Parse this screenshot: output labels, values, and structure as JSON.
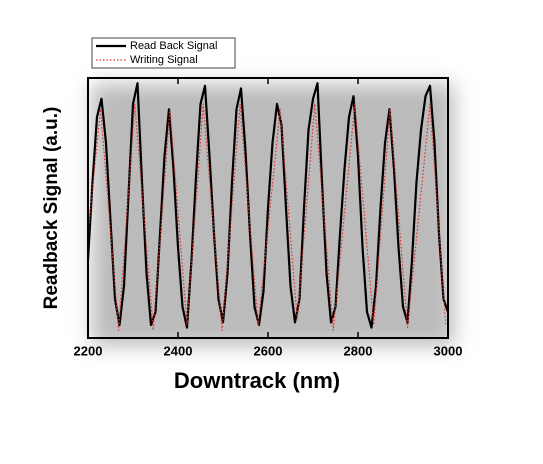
{
  "chart_data": {
    "type": "line",
    "x_label": "Downtrack (nm)",
    "y_label": "Readback Signal (a.u.)",
    "xlim": [
      2200,
      3000
    ],
    "xticks": [
      2200,
      2400,
      2600,
      2800,
      3000
    ],
    "ylim": [
      0,
      1
    ],
    "legend": "top-left",
    "series": [
      {
        "name": "Read Back Signal",
        "color": "#000000",
        "x": [
          2200,
          2210,
          2220,
          2230,
          2240,
          2250,
          2260,
          2270,
          2280,
          2290,
          2300,
          2310,
          2320,
          2330,
          2340,
          2350,
          2360,
          2370,
          2380,
          2390,
          2400,
          2410,
          2420,
          2430,
          2440,
          2450,
          2460,
          2470,
          2480,
          2490,
          2500,
          2510,
          2520,
          2530,
          2540,
          2550,
          2560,
          2570,
          2580,
          2590,
          2600,
          2610,
          2620,
          2630,
          2640,
          2650,
          2660,
          2670,
          2680,
          2690,
          2700,
          2710,
          2720,
          2730,
          2740,
          2750,
          2760,
          2770,
          2780,
          2790,
          2800,
          2810,
          2820,
          2830,
          2840,
          2850,
          2860,
          2870,
          2880,
          2890,
          2900,
          2910,
          2920,
          2930,
          2940,
          2950,
          2960,
          2970,
          2980,
          2990,
          3000
        ],
        "values": [
          0.3,
          0.6,
          0.85,
          0.92,
          0.75,
          0.45,
          0.15,
          0.05,
          0.2,
          0.55,
          0.9,
          0.98,
          0.6,
          0.25,
          0.05,
          0.1,
          0.4,
          0.7,
          0.88,
          0.65,
          0.35,
          0.12,
          0.04,
          0.3,
          0.62,
          0.9,
          0.97,
          0.7,
          0.4,
          0.15,
          0.06,
          0.25,
          0.6,
          0.88,
          0.96,
          0.72,
          0.4,
          0.12,
          0.05,
          0.18,
          0.5,
          0.75,
          0.9,
          0.82,
          0.5,
          0.2,
          0.06,
          0.15,
          0.5,
          0.8,
          0.92,
          0.98,
          0.6,
          0.25,
          0.06,
          0.12,
          0.4,
          0.65,
          0.85,
          0.93,
          0.7,
          0.35,
          0.1,
          0.04,
          0.2,
          0.5,
          0.75,
          0.88,
          0.65,
          0.35,
          0.12,
          0.06,
          0.3,
          0.6,
          0.8,
          0.93,
          0.97,
          0.75,
          0.4,
          0.15,
          0.1
        ]
      },
      {
        "name": "Writing Signal",
        "color": "#e0302a",
        "dotted": true,
        "x": [
          2200,
          2228,
          2268,
          2304,
          2345,
          2382,
          2420,
          2456,
          2498,
          2538,
          2578,
          2627,
          2665,
          2704,
          2745,
          2793,
          2835,
          2871,
          2910,
          2960,
          2995
        ],
        "values": [
          0.4,
          0.88,
          0.03,
          0.9,
          0.03,
          0.88,
          0.05,
          0.9,
          0.03,
          0.9,
          0.05,
          0.88,
          0.07,
          0.9,
          0.03,
          0.9,
          0.05,
          0.88,
          0.04,
          0.9,
          0.05
        ]
      }
    ]
  }
}
